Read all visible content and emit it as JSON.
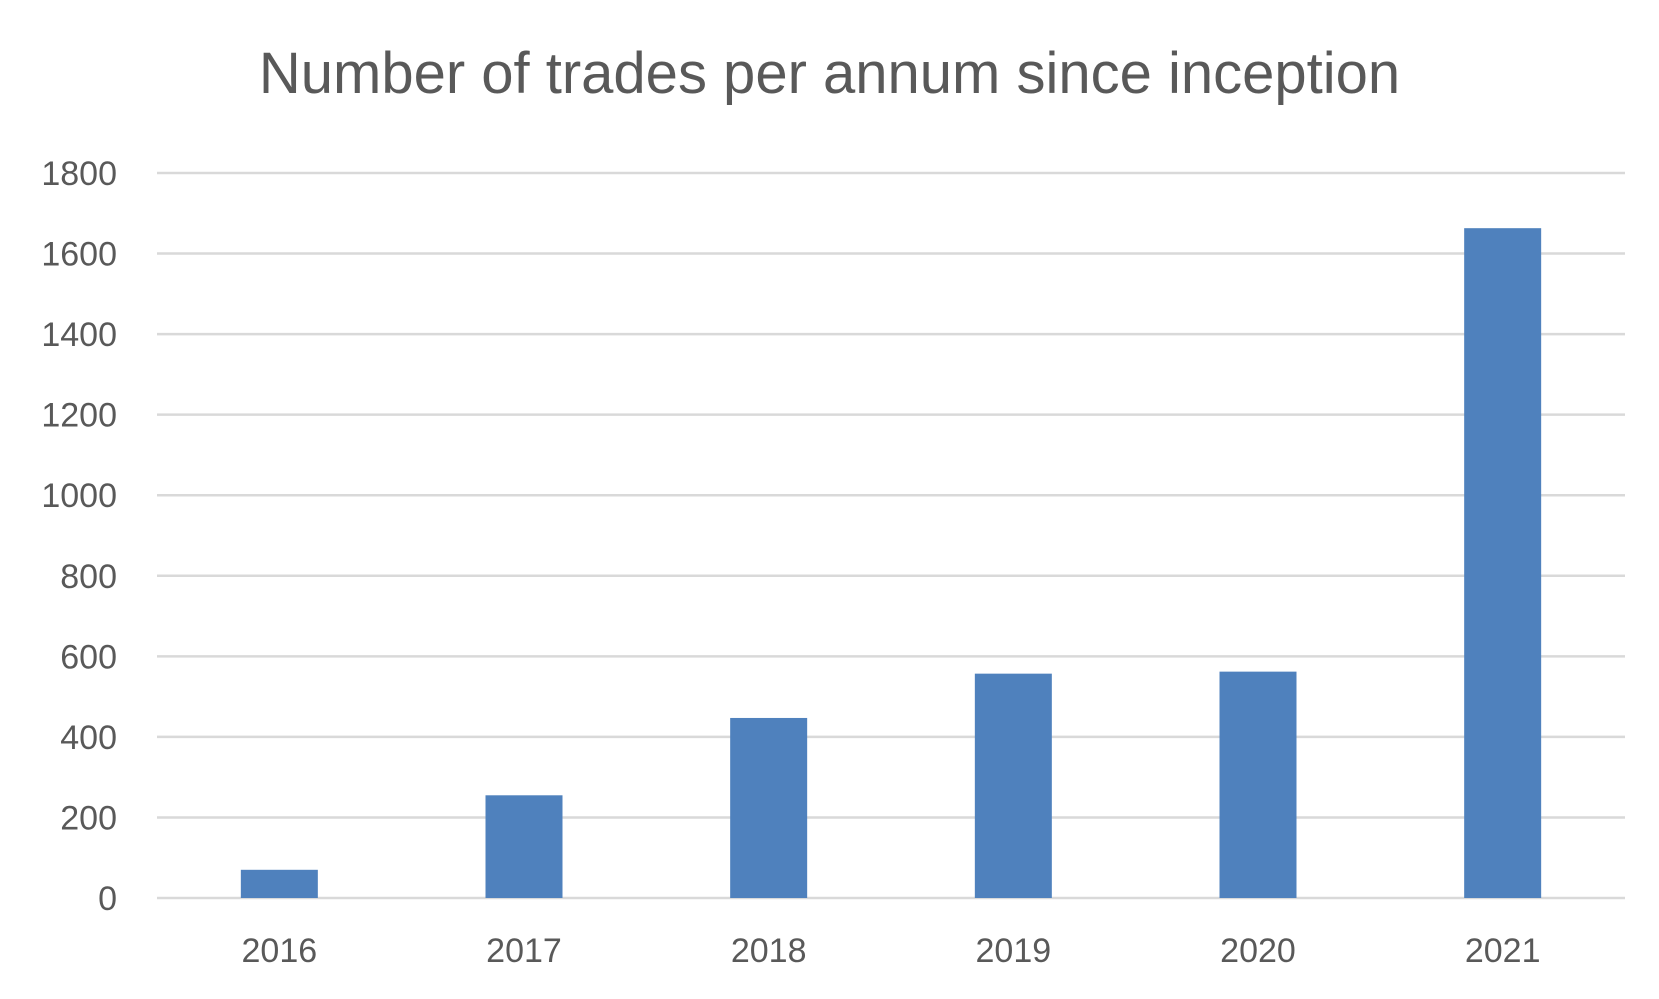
{
  "chart_data": {
    "type": "bar",
    "title": "Number of trades per annum since inception",
    "xlabel": "",
    "ylabel": "",
    "categories": [
      "2016",
      "2017",
      "2018",
      "2019",
      "2020",
      "2021"
    ],
    "values": [
      70,
      255,
      447,
      557,
      562,
      1663
    ],
    "ylim": [
      0,
      1800
    ],
    "yticks": [
      "0",
      "200",
      "400",
      "600",
      "800",
      "1000",
      "1200",
      "1400",
      "1600",
      "1800"
    ],
    "grid": true,
    "legend": "none",
    "bar_color": "#4F81BD",
    "grid_color": "#D9D9D9",
    "text_color": "#595959"
  }
}
